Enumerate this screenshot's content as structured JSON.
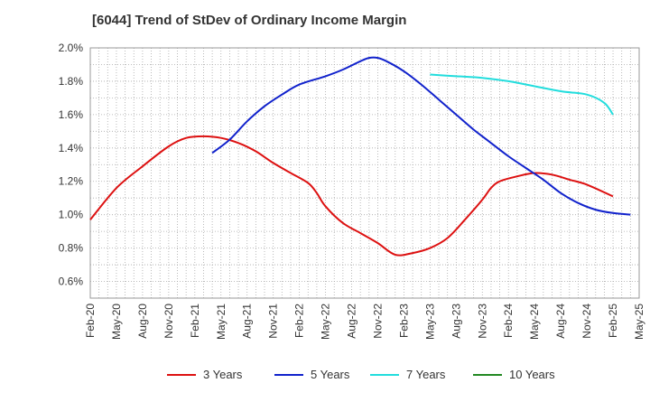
{
  "chart_data": {
    "type": "line",
    "title": "[6044]  Trend of StDev of Ordinary Income Margin",
    "xlabel": "",
    "ylabel": "",
    "x_tick_labels": [
      "Feb-20",
      "May-20",
      "Aug-20",
      "Nov-20",
      "Feb-21",
      "May-21",
      "Aug-21",
      "Nov-21",
      "Feb-22",
      "May-22",
      "Aug-22",
      "Nov-22",
      "Feb-23",
      "May-23",
      "Aug-23",
      "Nov-23",
      "Feb-24",
      "May-24",
      "Aug-24",
      "Nov-24",
      "Feb-25",
      "May-25"
    ],
    "y_tick_labels": [
      "0.6%",
      "0.8%",
      "1.0%",
      "1.2%",
      "1.4%",
      "1.6%",
      "1.8%",
      "2.0%"
    ],
    "ylim": [
      0.5,
      2.0
    ],
    "y_unit": "%",
    "grid": true,
    "legend_position": "bottom",
    "series": [
      {
        "name": "3 Years",
        "color": "#dd1111",
        "points": [
          [
            "Feb-20",
            0.97
          ],
          [
            "May-20",
            1.16
          ],
          [
            "Aug-20",
            1.29
          ],
          [
            "Nov-20",
            1.41
          ],
          [
            "Jan-21",
            1.46
          ],
          [
            "Mar-21",
            1.47
          ],
          [
            "May-21",
            1.46
          ],
          [
            "Jul-21",
            1.43
          ],
          [
            "Sep-21",
            1.38
          ],
          [
            "Nov-21",
            1.31
          ],
          [
            "Jan-22",
            1.25
          ],
          [
            "Mar-22",
            1.19
          ],
          [
            "Apr-22",
            1.13
          ],
          [
            "May-22",
            1.05
          ],
          [
            "Jul-22",
            0.95
          ],
          [
            "Sep-22",
            0.89
          ],
          [
            "Nov-22",
            0.83
          ],
          [
            "Jan-23",
            0.76
          ],
          [
            "Mar-23",
            0.77
          ],
          [
            "May-23",
            0.8
          ],
          [
            "Jul-23",
            0.86
          ],
          [
            "Sep-23",
            0.97
          ],
          [
            "Nov-23",
            1.09
          ],
          [
            "Dec-23",
            1.16
          ],
          [
            "Jan-24",
            1.2
          ],
          [
            "Mar-24",
            1.23
          ],
          [
            "May-24",
            1.25
          ],
          [
            "Jul-24",
            1.24
          ],
          [
            "Sep-24",
            1.21
          ],
          [
            "Nov-24",
            1.18
          ],
          [
            "Feb-25",
            1.11
          ]
        ]
      },
      {
        "name": "5 Years",
        "color": "#1122cc",
        "points": [
          [
            "Apr-21",
            1.37
          ],
          [
            "Jun-21",
            1.45
          ],
          [
            "Aug-21",
            1.56
          ],
          [
            "Oct-21",
            1.65
          ],
          [
            "Dec-21",
            1.72
          ],
          [
            "Feb-22",
            1.78
          ],
          [
            "May-22",
            1.83
          ],
          [
            "Jul-22",
            1.87
          ],
          [
            "Sep-22",
            1.92
          ],
          [
            "Oct-22",
            1.94
          ],
          [
            "Nov-22",
            1.94
          ],
          [
            "Dec-22",
            1.92
          ],
          [
            "Feb-23",
            1.86
          ],
          [
            "Apr-23",
            1.78
          ],
          [
            "Jun-23",
            1.69
          ],
          [
            "Aug-23",
            1.6
          ],
          [
            "Oct-23",
            1.51
          ],
          [
            "Dec-23",
            1.43
          ],
          [
            "Feb-24",
            1.35
          ],
          [
            "Apr-24",
            1.28
          ],
          [
            "Jun-24",
            1.21
          ],
          [
            "Aug-24",
            1.13
          ],
          [
            "Oct-24",
            1.07
          ],
          [
            "Dec-24",
            1.03
          ],
          [
            "Feb-25",
            1.01
          ],
          [
            "Apr-25",
            1.0
          ]
        ]
      },
      {
        "name": "7 Years",
        "color": "#22dddd",
        "points": [
          [
            "May-23",
            1.84
          ],
          [
            "Aug-23",
            1.83
          ],
          [
            "Nov-23",
            1.82
          ],
          [
            "Feb-24",
            1.8
          ],
          [
            "May-24",
            1.77
          ],
          [
            "Aug-24",
            1.74
          ],
          [
            "Nov-24",
            1.72
          ],
          [
            "Jan-25",
            1.67
          ],
          [
            "Feb-25",
            1.6
          ]
        ]
      },
      {
        "name": "10 Years",
        "color": "#228822",
        "points": []
      }
    ]
  }
}
